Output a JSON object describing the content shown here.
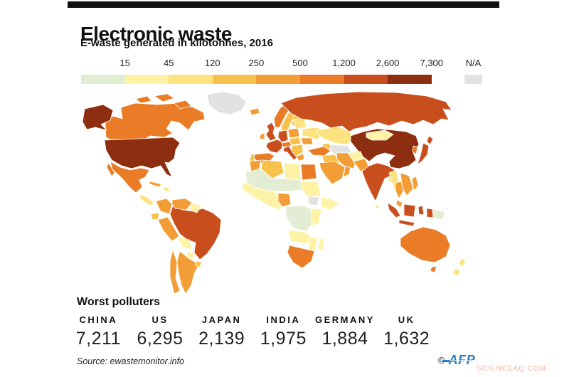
{
  "title": "Electronic waste",
  "subtitle": "E-waste generated in kilotonnes, 2016",
  "legend": {
    "bins": [
      {
        "label": "15",
        "color": "#e3edd3"
      },
      {
        "label": "45",
        "color": "#fdf2a6"
      },
      {
        "label": "120",
        "color": "#fce37f"
      },
      {
        "label": "250",
        "color": "#f7c14c"
      },
      {
        "label": "500",
        "color": "#f29d35"
      },
      {
        "label": "1,200",
        "color": "#ea7c27"
      },
      {
        "label": "2,600",
        "color": "#c84e1d"
      },
      {
        "label": "7,300",
        "color": "#8e2e10"
      }
    ],
    "na": {
      "label": "N/A",
      "color": "#e2e2e2"
    }
  },
  "chart_data": {
    "type": "heatmap",
    "subtype": "choropleth-world-map",
    "title": "Electronic waste",
    "subtitle": "E-waste generated in kilotonnes, 2016",
    "unit": "kilotonnes",
    "year": "2016",
    "scale_bin_upper_bounds": [
      15,
      45,
      120,
      250,
      500,
      1200,
      2600,
      7300
    ],
    "na_label": "N/A",
    "worst_polluters": [
      {
        "country": "CHINA",
        "value": 7211
      },
      {
        "country": "US",
        "value": 6295
      },
      {
        "country": "JAPAN",
        "value": 2139
      },
      {
        "country": "INDIA",
        "value": 1975
      },
      {
        "country": "GERMANY",
        "value": 1884
      },
      {
        "country": "UK",
        "value": 1632
      }
    ],
    "regions_bin_index": {
      "greenland": "na",
      "alaska": 7,
      "canada": 5,
      "arctic_islands_1": 5,
      "arctic_islands_2": 5,
      "arctic_islands_3": 5,
      "usa": 7,
      "mexico": 5,
      "baja": 5,
      "central_america": 2,
      "cuba": 4,
      "hispaniola": 2,
      "colombia": 4,
      "venezuela": 4,
      "guyanas": 1,
      "ecuador": 3,
      "peru": 4,
      "brazil": 6,
      "bolivia": 1,
      "paraguay": 1,
      "uruguay": 3,
      "argentina": 4,
      "chile": 4,
      "iceland": 4,
      "uk": 6,
      "ireland": 4,
      "norway": 5,
      "sweden": 3,
      "finland": 3,
      "france": 6,
      "spain": 5,
      "portugal": 3,
      "germany": 6,
      "alpine": 5,
      "italy": 6,
      "poland": 4,
      "central_europe": 3,
      "balkans": 3,
      "greece": 4,
      "romania": 4,
      "ukraine": 2,
      "belarus_baltics": 2,
      "russia": 6,
      "kazakhstan": 2,
      "central_asia": "na",
      "caucasus": 3,
      "turkey": 5,
      "syria_iraq": 3,
      "saudi_arabia": 4,
      "gulf_states": 4,
      "iran": 4,
      "morocco": 4,
      "algeria": 3,
      "libya": 1,
      "egypt": 5,
      "sahel": 0,
      "sudan": 1,
      "south_sudan": "na",
      "west_africa": 1,
      "nigeria": 4,
      "ethiopia": 1,
      "central_africa": 0,
      "east_africa": 1,
      "angola_zambia": 1,
      "mozambique": 1,
      "south_africa": 5,
      "madagascar": 1,
      "afghanistan": 1,
      "pakistan": 4,
      "india": 6,
      "bangladesh": 2,
      "sri_lanka": 2,
      "china": 7,
      "mongolia": 1,
      "korea": 5,
      "japan": 6,
      "japan_north": 6,
      "myanmar": 2,
      "thailand": 4,
      "indochina": 4,
      "malaysia": 4,
      "philippines": 4,
      "sumatra": 6,
      "borneo": 6,
      "java": 6,
      "sulawesi": 6,
      "west_papua": 6,
      "papua_new_guinea": 0,
      "australia": 5,
      "tasmania": 5,
      "new_zealand_north": 2,
      "new_zealand_south": 2
    }
  },
  "worst_polluters": {
    "heading": "Worst polluters",
    "items": [
      {
        "country": "CHINA",
        "value": "7,211"
      },
      {
        "country": "US",
        "value": "6,295"
      },
      {
        "country": "JAPAN",
        "value": "2,139"
      },
      {
        "country": "INDIA",
        "value": "1,975"
      },
      {
        "country": "GERMANY",
        "value": "1,884"
      },
      {
        "country": "UK",
        "value": "1,632"
      }
    ]
  },
  "source": "Source: ewastemonitor.info",
  "credit": {
    "copyright": "©",
    "agency": "AFP",
    "color": "#2b7cc0"
  },
  "watermark": {
    "text": "SCIENCEAQ.COM",
    "color": "#f5b4a5"
  }
}
